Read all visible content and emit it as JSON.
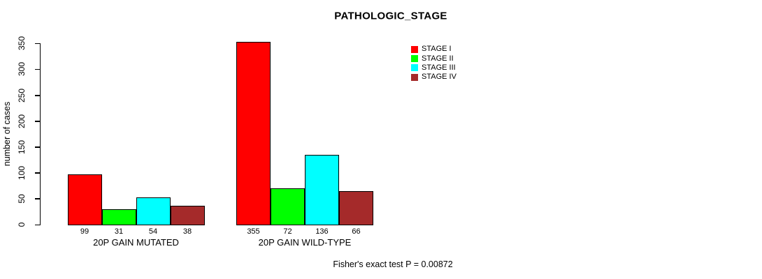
{
  "chart_data": {
    "type": "bar",
    "title": "PATHOLOGIC_STAGE",
    "ylabel": "number of cases",
    "xlabel": "",
    "annotation": "Fisher's exact test P = 0.00872",
    "ylim": [
      0,
      350
    ],
    "yticks": [
      0,
      50,
      100,
      150,
      200,
      250,
      300,
      350
    ],
    "grid": false,
    "legend_position": "top-right",
    "background": "#FFFFFF",
    "bar_border_color": "#000000",
    "categories": [
      "20P GAIN MUTATED",
      "20P GAIN WILD-TYPE"
    ],
    "series": [
      {
        "name": "STAGE I",
        "color": "#FF0000",
        "values": [
          99,
          355
        ]
      },
      {
        "name": "STAGE II",
        "color": "#00FF00",
        "values": [
          31,
          72
        ]
      },
      {
        "name": "STAGE III",
        "color": "#00FFFF",
        "values": [
          54,
          136
        ]
      },
      {
        "name": "STAGE IV",
        "color": "#A52A2A",
        "values": [
          38,
          66
        ]
      }
    ]
  }
}
